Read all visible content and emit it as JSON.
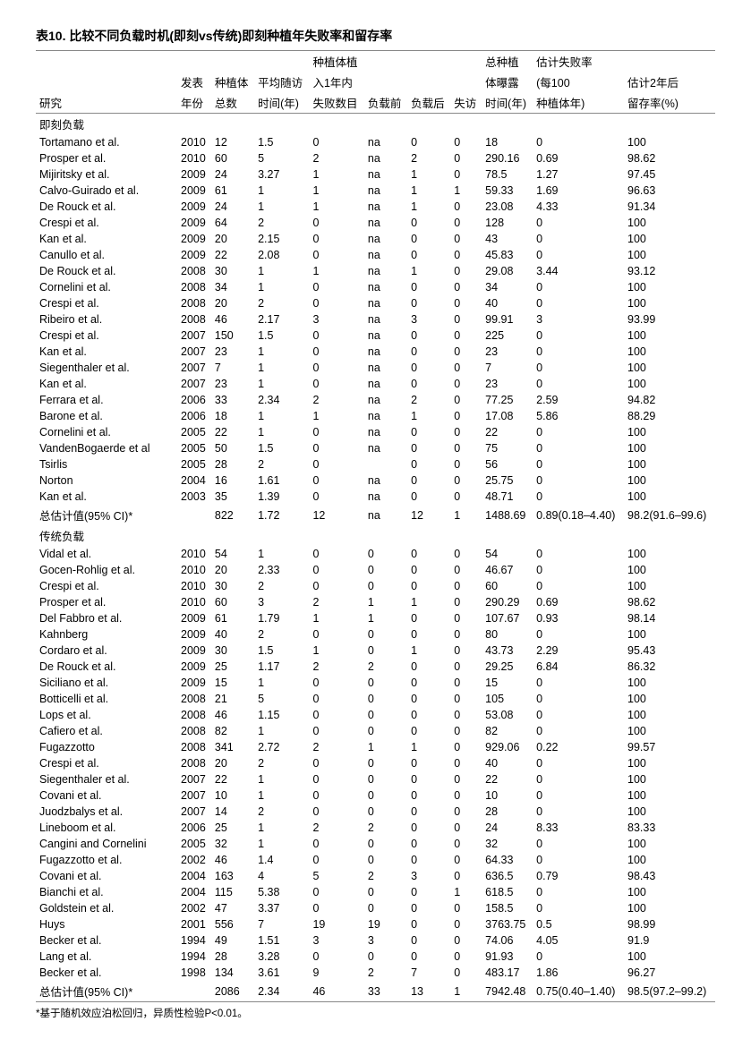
{
  "title": "表10.   比较不同负载时机(即刻vs传统)即刻种植年失败率和留存率",
  "headers": {
    "row1": [
      "",
      "",
      "",
      "",
      "种植体植",
      "",
      "",
      "",
      "总种植",
      "估计失败率",
      ""
    ],
    "row2": [
      "",
      "发表",
      "种植体",
      "平均随访",
      "入1年内",
      "",
      "",
      "",
      "体曝露",
      "(每100",
      "估计2年后"
    ],
    "row3": [
      "研究",
      "年份",
      "总数",
      "时间(年)",
      "失败数目",
      "负载前",
      "负载后",
      "失访",
      "时间(年)",
      "种植体年)",
      "留存率(%)"
    ]
  },
  "sections": [
    {
      "label": "即刻负载",
      "rows": [
        [
          "Tortamano et al.",
          "2010",
          "12",
          "1.5",
          "0",
          "na",
          "0",
          "0",
          "18",
          "0",
          "100"
        ],
        [
          "Prosper et al.",
          "2010",
          "60",
          "5",
          "2",
          "na",
          "2",
          "0",
          "290.16",
          "0.69",
          "98.62"
        ],
        [
          "Mijiritsky et al.",
          "2009",
          "24",
          "3.27",
          "1",
          "na",
          "1",
          "0",
          "78.5",
          "1.27",
          "97.45"
        ],
        [
          "Calvo-Guirado et al.",
          "2009",
          "61",
          "1",
          "1",
          "na",
          "1",
          "1",
          "59.33",
          "1.69",
          "96.63"
        ],
        [
          "De Rouck et al.",
          "2009",
          "24",
          "1",
          "1",
          "na",
          "1",
          "0",
          "23.08",
          "4.33",
          "91.34"
        ],
        [
          "Crespi et al.",
          "2009",
          "64",
          "2",
          "0",
          "na",
          "0",
          "0",
          "128",
          "0",
          "100"
        ],
        [
          "Kan et al.",
          "2009",
          "20",
          "2.15",
          "0",
          "na",
          "0",
          "0",
          "43",
          "0",
          "100"
        ],
        [
          "Canullo et al.",
          "2009",
          "22",
          "2.08",
          "0",
          "na",
          "0",
          "0",
          "45.83",
          "0",
          "100"
        ],
        [
          "De Rouck et al.",
          "2008",
          "30",
          "1",
          "1",
          "na",
          "1",
          "0",
          "29.08",
          "3.44",
          "93.12"
        ],
        [
          "Cornelini et al.",
          "2008",
          "34",
          "1",
          "0",
          "na",
          "0",
          "0",
          "34",
          "0",
          "100"
        ],
        [
          "Crespi et al.",
          "2008",
          "20",
          "2",
          "0",
          "na",
          "0",
          "0",
          "40",
          "0",
          "100"
        ],
        [
          "Ribeiro et al.",
          "2008",
          "46",
          "2.17",
          "3",
          "na",
          "3",
          "0",
          "99.91",
          "3",
          "93.99"
        ],
        [
          "Crespi et al.",
          "2007",
          "150",
          "1.5",
          "0",
          "na",
          "0",
          "0",
          "225",
          "0",
          "100"
        ],
        [
          "Kan et al.",
          "2007",
          "23",
          "1",
          "0",
          "na",
          "0",
          "0",
          "23",
          "0",
          "100"
        ],
        [
          "Siegenthaler et al.",
          "2007",
          "7",
          "1",
          "0",
          "na",
          "0",
          "0",
          "7",
          "0",
          "100"
        ],
        [
          "Kan et al.",
          "2007",
          "23",
          "1",
          "0",
          "na",
          "0",
          "0",
          "23",
          "0",
          "100"
        ],
        [
          "Ferrara et al.",
          "2006",
          "33",
          "2.34",
          "2",
          "na",
          "2",
          "0",
          "77.25",
          "2.59",
          "94.82"
        ],
        [
          "Barone et al.",
          "2006",
          "18",
          "1",
          "1",
          "na",
          "1",
          "0",
          "17.08",
          "5.86",
          "88.29"
        ],
        [
          "Cornelini et al.",
          "2005",
          "22",
          "1",
          "0",
          "na",
          "0",
          "0",
          "22",
          "0",
          "100"
        ],
        [
          "VandenBogaerde et al",
          "2005",
          "50",
          "1.5",
          "0",
          "na",
          "0",
          "0",
          "75",
          "0",
          "100"
        ],
        [
          "Tsirlis",
          "2005",
          "28",
          "2",
          "0",
          "",
          "0",
          "0",
          "56",
          "0",
          "100"
        ],
        [
          "Norton",
          "2004",
          "16",
          "1.61",
          "0",
          "na",
          "0",
          "0",
          "25.75",
          "0",
          "100"
        ],
        [
          "Kan et al.",
          "2003",
          "35",
          "1.39",
          "0",
          "na",
          "0",
          "0",
          "48.71",
          "0",
          "100"
        ],
        [
          "总估计值(95% CI)*",
          "",
          "822",
          "1.72",
          "12",
          "na",
          "12",
          "1",
          "1488.69",
          "0.89(0.18–4.40)",
          "98.2(91.6–99.6)"
        ]
      ]
    },
    {
      "label": "传统负载",
      "rows": [
        [
          "Vidal et al.",
          "2010",
          "54",
          "1",
          "0",
          "0",
          "0",
          "0",
          "54",
          "0",
          "100"
        ],
        [
          "Gocen-Rohlig et al.",
          "2010",
          "20",
          "2.33",
          "0",
          "0",
          "0",
          "0",
          "46.67",
          "0",
          "100"
        ],
        [
          "Crespi et al.",
          "2010",
          "30",
          "2",
          "0",
          "0",
          "0",
          "0",
          "60",
          "0",
          "100"
        ],
        [
          "Prosper et al.",
          "2010",
          "60",
          "3",
          "2",
          "1",
          "1",
          "0",
          "290.29",
          "0.69",
          "98.62"
        ],
        [
          "Del Fabbro et al.",
          "2009",
          "61",
          "1.79",
          "1",
          "1",
          "0",
          "0",
          "107.67",
          "0.93",
          "98.14"
        ],
        [
          "Kahnberg",
          "2009",
          "40",
          "2",
          "0",
          "0",
          "0",
          "0",
          "80",
          "0",
          "100"
        ],
        [
          "Cordaro et al.",
          "2009",
          "30",
          "1.5",
          "1",
          "0",
          "1",
          "0",
          "43.73",
          "2.29",
          "95.43"
        ],
        [
          "De Rouck et al.",
          "2009",
          "25",
          "1.17",
          "2",
          "2",
          "0",
          "0",
          "29.25",
          "6.84",
          "86.32"
        ],
        [
          "Siciliano et al.",
          "2009",
          "15",
          "1",
          "0",
          "0",
          "0",
          "0",
          "15",
          "0",
          "100"
        ],
        [
          "Botticelli et al.",
          "2008",
          "21",
          "5",
          "0",
          "0",
          "0",
          "0",
          "105",
          "0",
          "100"
        ],
        [
          "Lops et al.",
          "2008",
          "46",
          "1.15",
          "0",
          "0",
          "0",
          "0",
          "53.08",
          "0",
          "100"
        ],
        [
          "Cafiero et al.",
          "2008",
          "82",
          "1",
          "0",
          "0",
          "0",
          "0",
          "82",
          "0",
          "100"
        ],
        [
          "Fugazzotto",
          "2008",
          "341",
          "2.72",
          "2",
          "1",
          "1",
          "0",
          "929.06",
          "0.22",
          "99.57"
        ],
        [
          "Crespi et al.",
          "2008",
          "20",
          "2",
          "0",
          "0",
          "0",
          "0",
          "40",
          "0",
          "100"
        ],
        [
          "Siegenthaler et al.",
          "2007",
          "22",
          "1",
          "0",
          "0",
          "0",
          "0",
          "22",
          "0",
          "100"
        ],
        [
          "Covani et al.",
          "2007",
          "10",
          "1",
          "0",
          "0",
          "0",
          "0",
          "10",
          "0",
          "100"
        ],
        [
          "Juodzbalys et al.",
          "2007",
          "14",
          "2",
          "0",
          "0",
          "0",
          "0",
          "28",
          "0",
          "100"
        ],
        [
          "Lineboom et al.",
          "2006",
          "25",
          "1",
          "2",
          "2",
          "0",
          "0",
          "24",
          "8.33",
          "83.33"
        ],
        [
          "Cangini and Cornelini",
          "2005",
          "32",
          "1",
          "0",
          "0",
          "0",
          "0",
          "32",
          "0",
          "100"
        ],
        [
          "Fugazzotto et al.",
          "2002",
          "46",
          "1.4",
          "0",
          "0",
          "0",
          "0",
          "64.33",
          "0",
          "100"
        ],
        [
          "Covani et al.",
          "2004",
          "163",
          "4",
          "5",
          "2",
          "3",
          "0",
          "636.5",
          "0.79",
          "98.43"
        ],
        [
          "Bianchi et al.",
          "2004",
          "115",
          "5.38",
          "0",
          "0",
          "0",
          "1",
          "618.5",
          "0",
          "100"
        ],
        [
          "Goldstein et al.",
          "2002",
          "47",
          "3.37",
          "0",
          "0",
          "0",
          "0",
          "158.5",
          "0",
          "100"
        ],
        [
          "Huys",
          "2001",
          "556",
          "7",
          "19",
          "19",
          "0",
          "0",
          "3763.75",
          "0.5",
          "98.99"
        ],
        [
          "Becker et al.",
          "1994",
          "49",
          "1.51",
          "3",
          "3",
          "0",
          "0",
          "74.06",
          "4.05",
          "91.9"
        ],
        [
          "Lang et al.",
          "1994",
          "28",
          "3.28",
          "0",
          "0",
          "0",
          "0",
          "91.93",
          "0",
          "100"
        ],
        [
          "Becker et al.",
          "1998",
          "134",
          "3.61",
          "9",
          "2",
          "7",
          "0",
          "483.17",
          "1.86",
          "96.27"
        ],
        [
          "总估计值(95% CI)*",
          "",
          "2086",
          "2.34",
          "46",
          "33",
          "13",
          "1",
          "7942.48",
          "0.75(0.40–1.40)",
          "98.5(97.2–99.2)"
        ]
      ]
    }
  ],
  "footnote": "*基于随机效应泊松回归，异质性检验P<0.01。"
}
